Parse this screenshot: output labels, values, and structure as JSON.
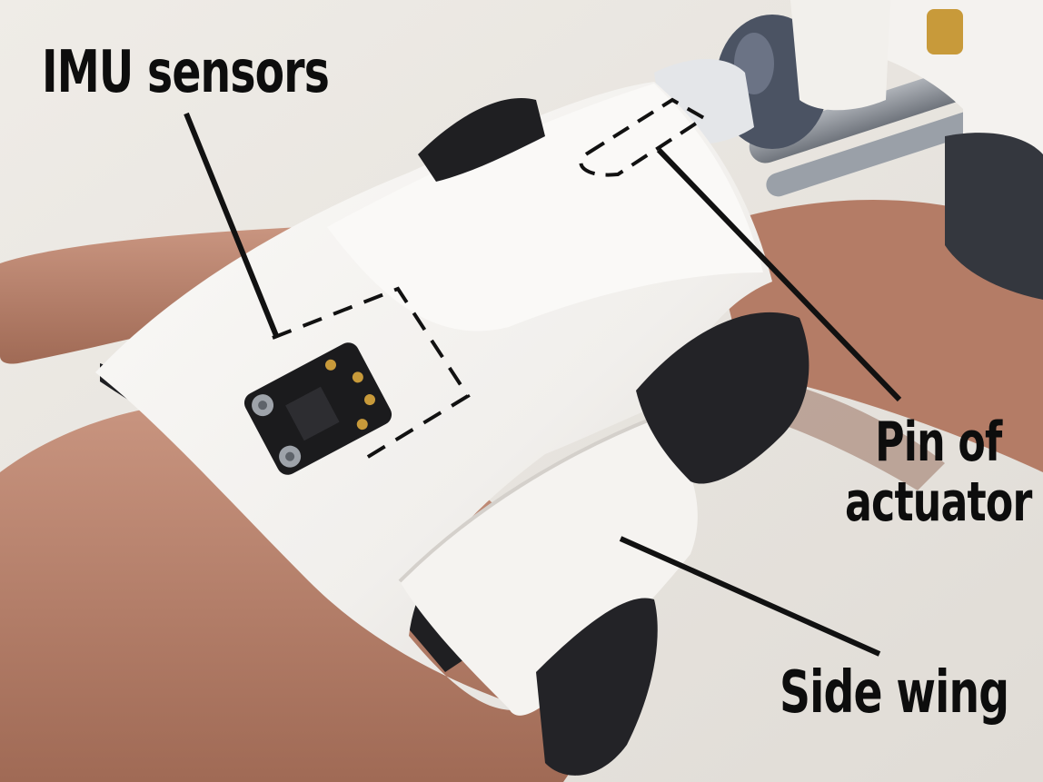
{
  "figure": {
    "annotations": {
      "imu": "IMU sensors",
      "pin_line1": "Pin of",
      "pin_line2": "actuator",
      "side_wing": "Side wing"
    },
    "subject": {
      "skin": "#b8826a",
      "skin_shadow": "#8a5a46",
      "brace": "#f3f1ee",
      "brace_shadow": "#d8d4cf",
      "velcro": "#1f1f22",
      "pcb": "#1b1b1d",
      "pad_gold": "#c89a3a",
      "tube": "#8f949c",
      "actuator_cap": "#4b5363",
      "background": "#e9e6e1"
    }
  }
}
